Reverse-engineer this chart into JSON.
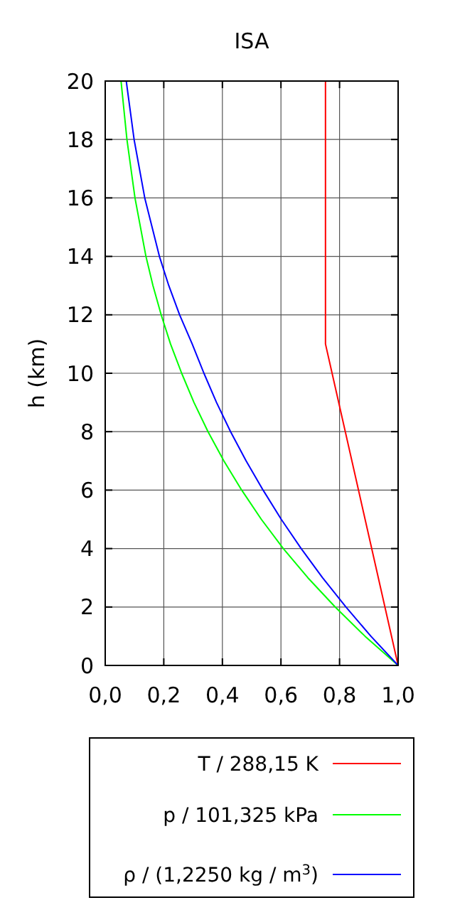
{
  "chart_data": {
    "type": "line",
    "title": "ISA",
    "ylabel": "h (km)",
    "xlim": [
      0,
      1
    ],
    "xticks": [
      {
        "value": 0,
        "label": "0,0"
      },
      {
        "value": 0.2,
        "label": "0,2"
      },
      {
        "value": 0.4,
        "label": "0,4"
      },
      {
        "value": 0.6,
        "label": "0,6"
      },
      {
        "value": 0.8,
        "label": "0,8"
      },
      {
        "value": 1,
        "label": "1,0"
      }
    ],
    "ylim": [
      0,
      20
    ],
    "yticks": [
      0,
      2,
      4,
      6,
      8,
      10,
      12,
      14,
      16,
      18,
      20
    ],
    "grid": true,
    "legend": "bottom",
    "marker": "none",
    "line_style": "solid",
    "series": [
      {
        "name": "T / 288,15 K",
        "color": "#ff0000",
        "x": [
          1,
          0.752,
          0.752
        ],
        "values": [
          0,
          11,
          20
        ]
      },
      {
        "name": "p / 101,325 kPa",
        "color": "#00ff00",
        "x": [
          1,
          0.887,
          0.785,
          0.692,
          0.608,
          0.533,
          0.466,
          0.405,
          0.351,
          0.303,
          0.261,
          0.223,
          0.191,
          0.163,
          0.139,
          0.1016,
          0.0741,
          0.054
        ],
        "values": [
          0,
          1,
          2,
          3,
          4,
          5,
          6,
          7,
          8,
          9,
          10,
          11,
          12,
          13,
          14,
          16,
          18,
          20
        ]
      },
      {
        "name": "ρ / (1,2250 kg / m$^{3}$)",
        "color": "#0000ff",
        "x": [
          1,
          0.907,
          0.822,
          0.742,
          0.669,
          0.601,
          0.539,
          0.481,
          0.428,
          0.38,
          0.337,
          0.297,
          0.254,
          0.217,
          0.185,
          0.135,
          0.0986,
          0.0718
        ],
        "values": [
          0,
          1,
          2,
          3,
          4,
          5,
          6,
          7,
          8,
          9,
          10,
          11,
          12,
          13,
          14,
          16,
          18,
          20
        ]
      }
    ]
  }
}
